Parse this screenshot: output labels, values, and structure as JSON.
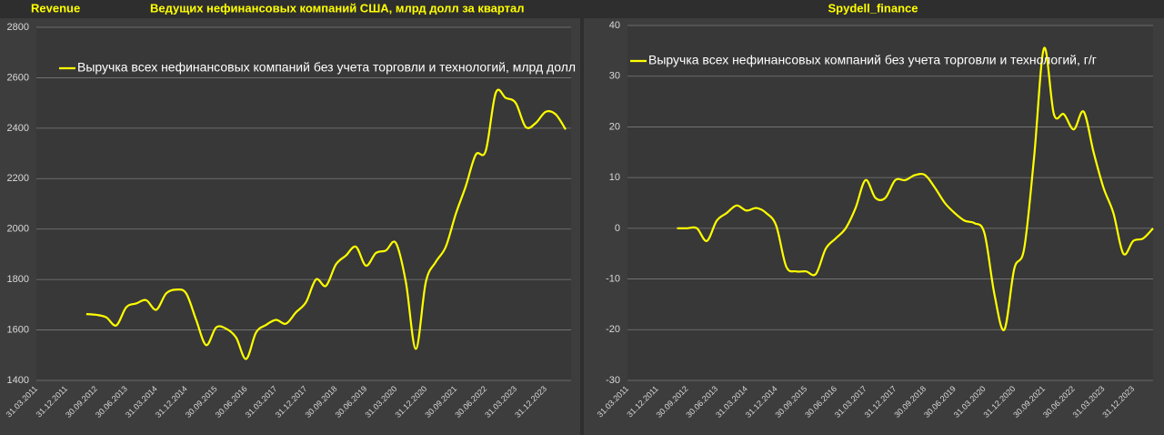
{
  "chart_data": [
    {
      "type": "line",
      "subtitle": "Revenue",
      "title": "Ведущих нефинансовых компаний США, млрд долл за квартал",
      "categories": [
        "31.03.2011",
        null,
        null,
        "31.12.2011",
        null,
        null,
        "30.09.2012",
        null,
        null,
        "30.06.2013",
        null,
        null,
        "31.03.2014",
        null,
        null,
        "31.12.2014",
        null,
        null,
        "30.09.2015",
        null,
        null,
        "30.06.2016",
        null,
        null,
        "31.03.2017",
        null,
        null,
        "31.12.2017",
        null,
        null,
        "30.09.2018",
        null,
        null,
        "30.06.2019",
        null,
        null,
        "31.03.2020",
        null,
        null,
        "31.12.2020",
        null,
        null,
        "30.09.2021",
        null,
        null,
        "30.06.2022",
        null,
        null,
        "31.03.2023",
        null,
        null,
        "31.12.2023",
        null,
        null
      ],
      "series": [
        {
          "name": "Выручка всех нефинансовых компаний без учета торговли и технологий, млрд долл",
          "color": "#ffff00",
          "values": [
            null,
            null,
            null,
            null,
            null,
            1663,
            1660,
            1650,
            1618,
            1690,
            1705,
            1718,
            1680,
            1745,
            1760,
            1745,
            1640,
            1540,
            1610,
            1605,
            1570,
            1485,
            1590,
            1620,
            1640,
            1625,
            1670,
            1710,
            1800,
            1775,
            1860,
            1895,
            1930,
            1855,
            1905,
            1915,
            1945,
            1790,
            1525,
            1790,
            1870,
            1930,
            2060,
            2170,
            2295,
            2310,
            2540,
            2520,
            2500,
            2405,
            2420,
            2465,
            2455,
            2395
          ]
        }
      ],
      "ylim": [
        1400,
        2800
      ],
      "yticks": [
        1400,
        1600,
        1800,
        2000,
        2200,
        2400,
        2600,
        2800
      ],
      "grid": true
    },
    {
      "type": "line",
      "title": "Spydell_finance",
      "categories": [
        "31.03.2011",
        null,
        null,
        "31.12.2011",
        null,
        null,
        "30.09.2012",
        null,
        null,
        "30.06.2013",
        null,
        null,
        "31.03.2014",
        null,
        null,
        "31.12.2014",
        null,
        null,
        "30.09.2015",
        null,
        null,
        "30.06.2016",
        null,
        null,
        "31.03.2017",
        null,
        null,
        "31.12.2017",
        null,
        null,
        "30.09.2018",
        null,
        null,
        "30.06.2019",
        null,
        null,
        "31.03.2020",
        null,
        null,
        "31.12.2020",
        null,
        null,
        "30.09.2021",
        null,
        null,
        "30.06.2022",
        null,
        null,
        "31.03.2023",
        null,
        null,
        "31.12.2023",
        null,
        null
      ],
      "series": [
        {
          "name": "Выручка всех нефинансовых компаний без учета торговли и технологий, г/г",
          "color": "#ffff00",
          "values": [
            null,
            null,
            null,
            null,
            null,
            0,
            0,
            0,
            -2.5,
            1.5,
            3,
            4.5,
            3.5,
            4,
            3,
            0.5,
            -7.5,
            -8.5,
            -8.5,
            -9,
            -4,
            -2,
            0,
            4,
            9.5,
            6,
            6,
            9.5,
            9.5,
            10.5,
            10.5,
            8,
            5,
            3,
            1.5,
            1,
            -1,
            -13,
            -20,
            -8,
            -4,
            14,
            35.5,
            22.5,
            22.5,
            19.5,
            23,
            15,
            8,
            3,
            -5,
            -2.5,
            -2,
            0
          ]
        }
      ],
      "ylim": [
        -30,
        40
      ],
      "yticks": [
        -30,
        -20,
        -10,
        0,
        10,
        20,
        30,
        40
      ],
      "grid": true
    }
  ]
}
